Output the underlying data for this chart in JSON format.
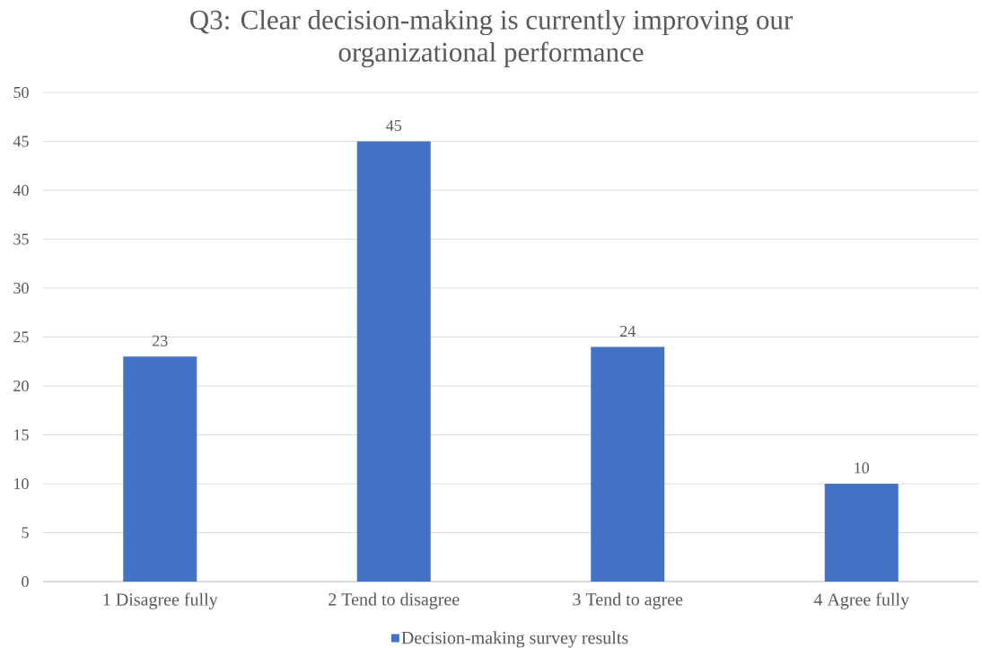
{
  "chart_data": {
    "type": "bar",
    "title": "Q3: Clear decision-making is currently improving our organizational performance",
    "categories": [
      "1 Disagree fully",
      "2 Tend to disagree",
      "3 Tend to agree",
      "4 Agree fully"
    ],
    "series": [
      {
        "name": "Decision-making survey results",
        "color": "#4472c4",
        "values": [
          23,
          45,
          24,
          10
        ]
      }
    ],
    "ylim": [
      0,
      50
    ],
    "yticks": [
      0,
      5,
      10,
      15,
      20,
      25,
      30,
      35,
      40,
      45,
      50
    ],
    "grid": "y",
    "legend": "bottom",
    "data_labels": true
  }
}
